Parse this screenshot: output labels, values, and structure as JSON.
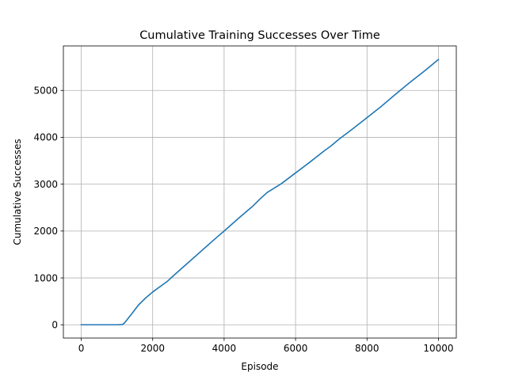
{
  "chart_data": {
    "type": "line",
    "title": "Cumulative Training Successes Over Time",
    "xlabel": "Episode",
    "ylabel": "Cumulative Successes",
    "xlim": [
      -500,
      10500
    ],
    "ylim": [
      -283,
      5950
    ],
    "xticks": [
      0,
      2000,
      4000,
      6000,
      8000,
      10000
    ],
    "yticks": [
      0,
      1000,
      2000,
      3000,
      4000,
      5000
    ],
    "xtick_labels": [
      "0",
      "2000",
      "4000",
      "6000",
      "8000",
      "10000"
    ],
    "ytick_labels": [
      "0",
      "1000",
      "2000",
      "3000",
      "4000",
      "5000"
    ],
    "grid": true,
    "series": [
      {
        "color": "#1f77b4",
        "x": [
          0,
          500,
          1000,
          1150,
          1200,
          1400,
          1600,
          1800,
          2000,
          2400,
          2600,
          3000,
          3400,
          3800,
          4000,
          4400,
          4800,
          5000,
          5200,
          5600,
          6000,
          6400,
          6800,
          7000,
          7200,
          7600,
          8000,
          8400,
          8800,
          9200,
          9600,
          10000
        ],
        "y": [
          0,
          0,
          0,
          5,
          30,
          220,
          420,
          570,
          700,
          920,
          1060,
          1330,
          1600,
          1870,
          2000,
          2270,
          2530,
          2680,
          2820,
          3010,
          3240,
          3470,
          3710,
          3820,
          3950,
          4180,
          4420,
          4660,
          4920,
          5170,
          5410,
          5660
        ]
      }
    ]
  }
}
